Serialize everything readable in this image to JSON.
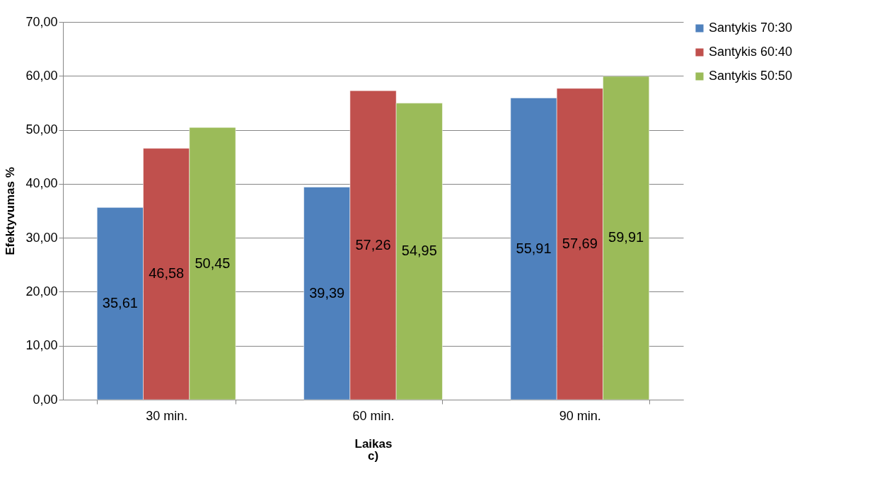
{
  "chart_data": {
    "type": "bar",
    "xlabel": "Laikas",
    "ylabel": "Efektyvumas %",
    "annotations": [
      "c)"
    ],
    "categories": [
      "30 min.",
      "60 min.",
      "90 min."
    ],
    "series": [
      {
        "name": "Santykis 70:30",
        "color": "#4f81bd",
        "values": [
          35.61,
          39.39,
          55.91
        ],
        "value_labels": [
          "35,61",
          "39,39",
          "55,91"
        ]
      },
      {
        "name": "Santykis 60:40",
        "color": "#c0504d",
        "values": [
          46.58,
          57.26,
          57.69
        ],
        "value_labels": [
          "46,58",
          "57,26",
          "57,69"
        ]
      },
      {
        "name": "Santykis 50:50",
        "color": "#9bbb59",
        "values": [
          50.45,
          54.95,
          59.91
        ],
        "value_labels": [
          "50,45",
          "54,95",
          "59,91"
        ]
      }
    ],
    "ylim": [
      0,
      70
    ],
    "yticks": [
      {
        "value": 0,
        "label": "0,00"
      },
      {
        "value": 10,
        "label": "10,00"
      },
      {
        "value": 20,
        "label": "20,00"
      },
      {
        "value": 30,
        "label": "30,00"
      },
      {
        "value": 40,
        "label": "40,00"
      },
      {
        "value": 50,
        "label": "50,00"
      },
      {
        "value": 60,
        "label": "60,00"
      },
      {
        "value": 70,
        "label": "70,00"
      }
    ],
    "grid": "y",
    "legend": "right"
  }
}
